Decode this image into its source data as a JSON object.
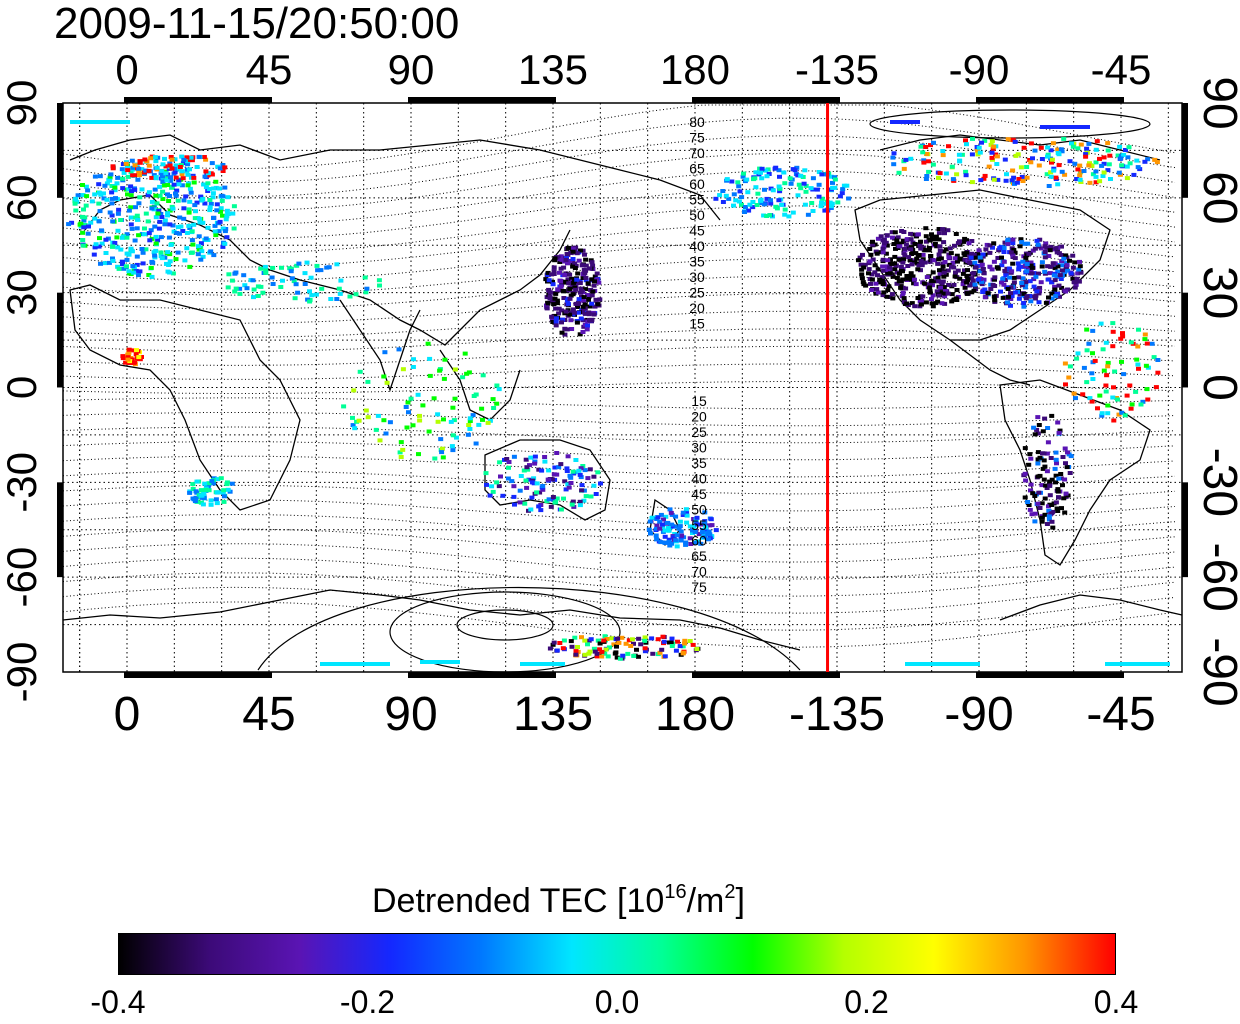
{
  "title": "2009-11-15/20:50:00",
  "map": {
    "top_lon_ticks": [
      "0",
      "45",
      "90",
      "135",
      "180",
      "-135",
      "-90",
      "-45"
    ],
    "bottom_lon_ticks": [
      "0",
      "45",
      "90",
      "135",
      "180",
      "-135",
      "-90",
      "-45"
    ],
    "left_lat_ticks": [
      "90",
      "60",
      "30",
      "0",
      "-30",
      "-60",
      "-90"
    ],
    "right_lat_ticks": [
      "90",
      "60",
      "30",
      "0",
      "-30",
      "-60",
      "-90"
    ],
    "contour_labels_north": [
      "80",
      "75",
      "70",
      "65",
      "60",
      "55",
      "50",
      "45",
      "40",
      "35",
      "30",
      "25",
      "20",
      "15"
    ],
    "contour_labels_south": [
      "15",
      "20",
      "25",
      "30",
      "35",
      "40",
      "45",
      "50",
      "55",
      "60",
      "65",
      "70",
      "75"
    ],
    "terminator_line_color": "#ff0000",
    "terminator_lon": -138
  },
  "colorbar": {
    "title_main": "Detrended TEC  [10",
    "title_sup1": "16",
    "title_mid": "/m",
    "title_sup2": "2",
    "title_end": "]",
    "ticks": [
      "-0.4",
      "-0.2",
      "0.0",
      "0.2",
      "0.4"
    ],
    "min": -0.4,
    "max": 0.4,
    "colormap": [
      "#000000",
      "#3c0a78",
      "#5a14b4",
      "#1428ff",
      "#0078ff",
      "#00e6ff",
      "#00ff96",
      "#00ff00",
      "#b4ff00",
      "#ffff00",
      "#ff9600",
      "#ff0000"
    ]
  }
}
